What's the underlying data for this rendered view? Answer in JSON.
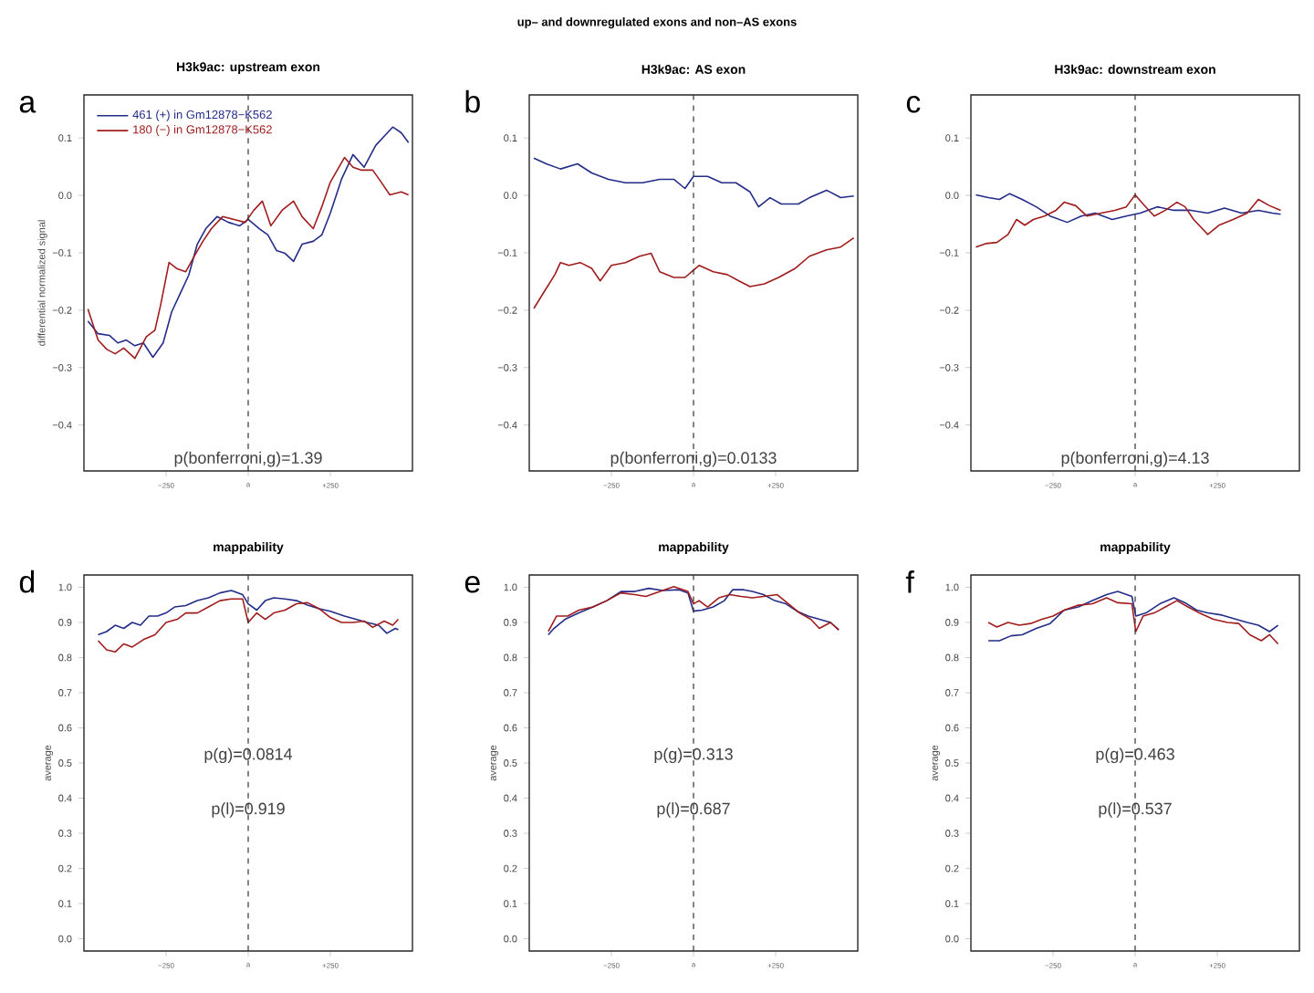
{
  "chart_data": [
    {
      "type": "line",
      "title": "H3k9ac: upstream exon",
      "ylabel": "differential normalized signal",
      "legend": "top left",
      "annotations": [
        "up– and downregulated exons and non–AS exons",
        "a",
        "p(bonferroni,g)=1.39"
      ],
      "xlim": [
        -500,
        500
      ],
      "xticks": [
        {
          "value": -250,
          "label": "−250"
        },
        {
          "value": 0,
          "label": "a"
        },
        {
          "value": 250,
          "label": "+250"
        }
      ],
      "ylim": [
        -0.48,
        0.175
      ],
      "yticks": [
        {
          "value": -0.4,
          "label": "−0.4"
        },
        {
          "value": -0.3,
          "label": "−0.3"
        },
        {
          "value": -0.2,
          "label": "−0.2"
        },
        {
          "value": -0.1,
          "label": "−0.1"
        },
        {
          "value": 0,
          "label": "0.0"
        },
        {
          "value": 0.1,
          "label": "0.1"
        }
      ],
      "ref_lines": [
        {
          "axis": "x",
          "value": 0,
          "line_style": "dashed",
          "color": "#333333"
        }
      ],
      "series": [
        {
          "name": "461 (+) in Gm12878−K562",
          "color": "#232c88",
          "x": [
            -488,
            -457,
            -422,
            -397,
            -371,
            -345,
            -319,
            -290,
            -259,
            -233,
            -207,
            -181,
            -155,
            -129,
            -95,
            -60,
            -26,
            0,
            34,
            60,
            86,
            112,
            138,
            164,
            198,
            224,
            250,
            284,
            319,
            353,
            388,
            414,
            440,
            466,
            488
          ],
          "values": [
            -0.219,
            -0.241,
            -0.244,
            -0.257,
            -0.252,
            -0.262,
            -0.257,
            -0.282,
            -0.257,
            -0.203,
            -0.171,
            -0.139,
            -0.085,
            -0.058,
            -0.037,
            -0.047,
            -0.053,
            -0.042,
            -0.058,
            -0.069,
            -0.096,
            -0.101,
            -0.115,
            -0.085,
            -0.08,
            -0.069,
            -0.031,
            0.028,
            0.071,
            0.049,
            0.087,
            0.103,
            0.119,
            0.109,
            0.092
          ]
        },
        {
          "name": "180 (−) in Gm12878−K562",
          "color": "#a01c1c",
          "x": [
            -488,
            -457,
            -431,
            -405,
            -379,
            -345,
            -310,
            -284,
            -267,
            -241,
            -216,
            -190,
            -164,
            -138,
            -112,
            -78,
            -43,
            -9,
            17,
            43,
            69,
            103,
            138,
            164,
            198,
            224,
            250,
            293,
            319,
            345,
            379,
            405,
            431,
            466,
            488
          ],
          "values": [
            -0.198,
            -0.252,
            -0.268,
            -0.276,
            -0.266,
            -0.284,
            -0.246,
            -0.235,
            -0.192,
            -0.117,
            -0.128,
            -0.133,
            -0.106,
            -0.08,
            -0.058,
            -0.037,
            -0.042,
            -0.047,
            -0.026,
            -0.01,
            -0.053,
            -0.026,
            -0.01,
            -0.037,
            -0.058,
            -0.02,
            0.023,
            0.066,
            0.049,
            0.044,
            0.044,
            0.023,
            0.001,
            0.006,
            0.001
          ]
        }
      ]
    },
    {
      "type": "line",
      "title": "H3k9ac: AS exon",
      "annotations": [
        "b",
        "p(bonferroni,g)=0.0133"
      ],
      "xlim": [
        -500,
        500
      ],
      "xticks": [
        {
          "value": -250,
          "label": "−250"
        },
        {
          "value": 0,
          "label": "a"
        },
        {
          "value": 250,
          "label": "+250"
        }
      ],
      "ylim": [
        -0.48,
        0.175
      ],
      "yticks": [
        {
          "value": -0.4,
          "label": "−0.4"
        },
        {
          "value": -0.3,
          "label": "−0.3"
        },
        {
          "value": -0.2,
          "label": "−0.2"
        },
        {
          "value": -0.1,
          "label": "−0.1"
        },
        {
          "value": 0,
          "label": "0.0"
        },
        {
          "value": 0.1,
          "label": "0.1"
        }
      ],
      "ref_lines": [
        {
          "axis": "x",
          "value": 0,
          "line_style": "dashed",
          "color": "#333333"
        }
      ],
      "series": [
        {
          "color": "#232c88",
          "x": [
            -486,
            -448,
            -405,
            -353,
            -310,
            -259,
            -207,
            -155,
            -103,
            -60,
            -26,
            0,
            43,
            86,
            129,
            172,
            198,
            233,
            267,
            319,
            353,
            405,
            448,
            488
          ],
          "values": [
            0.065,
            0.055,
            0.046,
            0.055,
            0.039,
            0.028,
            0.022,
            0.022,
            0.028,
            0.028,
            0.012,
            0.033,
            0.033,
            0.022,
            0.022,
            0.006,
            -0.02,
            -0.004,
            -0.015,
            -0.015,
            -0.004,
            0.009,
            -0.004,
            -0.001
          ]
        },
        {
          "color": "#a01c1c",
          "x": [
            -486,
            -457,
            -422,
            -405,
            -379,
            -345,
            -310,
            -284,
            -250,
            -207,
            -164,
            -129,
            -103,
            -60,
            -26,
            17,
            60,
            103,
            138,
            172,
            216,
            259,
            310,
            353,
            405,
            448,
            488
          ],
          "values": [
            -0.197,
            -0.17,
            -0.138,
            -0.117,
            -0.122,
            -0.117,
            -0.127,
            -0.149,
            -0.122,
            -0.117,
            -0.106,
            -0.101,
            -0.133,
            -0.143,
            -0.143,
            -0.122,
            -0.133,
            -0.138,
            -0.149,
            -0.159,
            -0.154,
            -0.143,
            -0.127,
            -0.106,
            -0.095,
            -0.09,
            -0.074
          ]
        }
      ]
    },
    {
      "type": "line",
      "title": "H3k9ac: downstream exon",
      "annotations": [
        "c",
        "p(bonferroni,g)=4.13"
      ],
      "xlim": [
        -500,
        500
      ],
      "xticks": [
        {
          "value": -250,
          "label": "−250"
        },
        {
          "value": 0,
          "label": "a"
        },
        {
          "value": 250,
          "label": "+250"
        }
      ],
      "ylim": [
        -0.48,
        0.175
      ],
      "yticks": [
        {
          "value": -0.4,
          "label": "−0.4"
        },
        {
          "value": -0.3,
          "label": "−0.3"
        },
        {
          "value": -0.2,
          "label": "−0.2"
        },
        {
          "value": -0.1,
          "label": "−0.1"
        },
        {
          "value": 0,
          "label": "0.0"
        },
        {
          "value": 0.1,
          "label": "0.1"
        }
      ],
      "ref_lines": [
        {
          "axis": "x",
          "value": 0,
          "line_style": "dashed",
          "color": "#333333"
        }
      ],
      "series": [
        {
          "color": "#232c88",
          "x": [
            -485,
            -447,
            -413,
            -382,
            -344,
            -301,
            -259,
            -207,
            -164,
            -122,
            -70,
            -27,
            15,
            67,
            118,
            170,
            221,
            272,
            324,
            375,
            418,
            443
          ],
          "values": [
            0.001,
            -0.004,
            -0.007,
            0.003,
            -0.007,
            -0.02,
            -0.036,
            -0.047,
            -0.036,
            -0.031,
            -0.042,
            -0.036,
            -0.031,
            -0.02,
            -0.026,
            -0.026,
            -0.031,
            -0.022,
            -0.031,
            -0.026,
            -0.031,
            -0.033
          ]
        },
        {
          "color": "#a01c1c",
          "x": [
            -485,
            -455,
            -421,
            -387,
            -361,
            -336,
            -310,
            -276,
            -241,
            -216,
            -181,
            -147,
            -104,
            -62,
            -27,
            0,
            24,
            58,
            92,
            127,
            152,
            178,
            221,
            255,
            298,
            341,
            375,
            409,
            443
          ],
          "values": [
            -0.09,
            -0.084,
            -0.082,
            -0.068,
            -0.042,
            -0.052,
            -0.042,
            -0.036,
            -0.026,
            -0.012,
            -0.018,
            -0.036,
            -0.031,
            -0.026,
            -0.02,
            0.001,
            -0.015,
            -0.036,
            -0.026,
            -0.012,
            -0.02,
            -0.042,
            -0.068,
            -0.052,
            -0.042,
            -0.031,
            -0.007,
            -0.018,
            -0.026
          ]
        }
      ]
    },
    {
      "type": "line",
      "title": "mappability",
      "ylabel": "average",
      "annotations": [
        "d",
        "p(g)=0.0814",
        "p(l)=0.919"
      ],
      "xlim": [
        -500,
        500
      ],
      "xticks": [
        {
          "value": -250,
          "label": "−250"
        },
        {
          "value": 0,
          "label": "a"
        },
        {
          "value": 250,
          "label": "+250"
        }
      ],
      "ylim": [
        -0.035,
        1.035
      ],
      "yticks": [
        {
          "value": 0,
          "label": "0.0"
        },
        {
          "value": 0.1,
          "label": "0.1"
        },
        {
          "value": 0.2,
          "label": "0.2"
        },
        {
          "value": 0.3,
          "label": "0.3"
        },
        {
          "value": 0.4,
          "label": "0.4"
        },
        {
          "value": 0.5,
          "label": "0.5"
        },
        {
          "value": 0.6,
          "label": "0.6"
        },
        {
          "value": 0.7,
          "label": "0.7"
        },
        {
          "value": 0.8,
          "label": "0.8"
        },
        {
          "value": 0.9,
          "label": "0.9"
        },
        {
          "value": 1,
          "label": "1.0"
        }
      ],
      "ref_lines": [
        {
          "axis": "x",
          "value": 0,
          "line_style": "dashed",
          "color": "#333333"
        }
      ],
      "series": [
        {
          "color": "#232c88",
          "x": [
            -457,
            -431,
            -405,
            -379,
            -353,
            -328,
            -302,
            -276,
            -250,
            -224,
            -190,
            -155,
            -121,
            -86,
            -52,
            -17,
            0,
            26,
            52,
            78,
            112,
            147,
            181,
            216,
            250,
            293,
            328,
            362,
            397,
            422,
            448,
            457
          ],
          "values": [
            0.865,
            0.874,
            0.892,
            0.883,
            0.9,
            0.892,
            0.918,
            0.918,
            0.927,
            0.944,
            0.948,
            0.962,
            0.97,
            0.984,
            0.991,
            0.979,
            0.953,
            0.935,
            0.962,
            0.97,
            0.967,
            0.962,
            0.949,
            0.939,
            0.932,
            0.918,
            0.909,
            0.9,
            0.892,
            0.869,
            0.883,
            0.879
          ]
        },
        {
          "color": "#a01c1c",
          "x": [
            -457,
            -431,
            -405,
            -379,
            -353,
            -319,
            -284,
            -250,
            -216,
            -190,
            -155,
            -121,
            -86,
            -52,
            -17,
            0,
            26,
            52,
            78,
            112,
            147,
            181,
            216,
            250,
            284,
            319,
            353,
            379,
            414,
            440,
            457
          ],
          "values": [
            0.848,
            0.822,
            0.816,
            0.839,
            0.83,
            0.851,
            0.865,
            0.9,
            0.909,
            0.927,
            0.927,
            0.944,
            0.962,
            0.967,
            0.967,
            0.9,
            0.927,
            0.909,
            0.927,
            0.935,
            0.953,
            0.956,
            0.939,
            0.914,
            0.9,
            0.9,
            0.904,
            0.886,
            0.904,
            0.892,
            0.909
          ]
        }
      ]
    },
    {
      "type": "line",
      "title": "mappability",
      "ylabel": "average",
      "annotations": [
        "e",
        "p(g)=0.313",
        "p(l)=0.687"
      ],
      "xlim": [
        -500,
        500
      ],
      "xticks": [
        {
          "value": -250,
          "label": "−250"
        },
        {
          "value": 0,
          "label": "a"
        },
        {
          "value": 250,
          "label": "+250"
        }
      ],
      "ylim": [
        -0.035,
        1.035
      ],
      "yticks": [
        {
          "value": 0,
          "label": "0.0"
        },
        {
          "value": 0.1,
          "label": "0.1"
        },
        {
          "value": 0.2,
          "label": "0.2"
        },
        {
          "value": 0.3,
          "label": "0.3"
        },
        {
          "value": 0.4,
          "label": "0.4"
        },
        {
          "value": 0.5,
          "label": "0.5"
        },
        {
          "value": 0.6,
          "label": "0.6"
        },
        {
          "value": 0.7,
          "label": "0.7"
        },
        {
          "value": 0.8,
          "label": "0.8"
        },
        {
          "value": 0.9,
          "label": "0.9"
        },
        {
          "value": 1,
          "label": "1.0"
        }
      ],
      "ref_lines": [
        {
          "axis": "x",
          "value": 0,
          "line_style": "dashed",
          "color": "#333333"
        }
      ],
      "series": [
        {
          "color": "#232c88",
          "x": [
            -442,
            -425,
            -391,
            -349,
            -306,
            -264,
            -221,
            -179,
            -136,
            -94,
            -43,
            -17,
            0,
            26,
            60,
            94,
            119,
            153,
            179,
            213,
            247,
            281,
            315,
            349,
            383,
            417,
            442
          ],
          "values": [
            0.865,
            0.883,
            0.909,
            0.927,
            0.944,
            0.962,
            0.988,
            0.988,
            0.997,
            0.991,
            0.993,
            0.984,
            0.932,
            0.935,
            0.944,
            0.962,
            0.993,
            0.993,
            0.988,
            0.979,
            0.962,
            0.953,
            0.932,
            0.918,
            0.909,
            0.9,
            0.879
          ]
        },
        {
          "color": "#a01c1c",
          "x": [
            -442,
            -417,
            -383,
            -349,
            -306,
            -264,
            -221,
            -179,
            -145,
            -102,
            -60,
            -17,
            0,
            17,
            43,
            77,
            111,
            145,
            179,
            213,
            255,
            289,
            323,
            357,
            383,
            417,
            442
          ],
          "values": [
            0.874,
            0.918,
            0.918,
            0.935,
            0.944,
            0.962,
            0.984,
            0.979,
            0.974,
            0.988,
            1.002,
            0.988,
            0.953,
            0.962,
            0.944,
            0.97,
            0.979,
            0.974,
            0.97,
            0.974,
            0.979,
            0.953,
            0.927,
            0.909,
            0.883,
            0.9,
            0.879
          ]
        }
      ]
    },
    {
      "type": "line",
      "title": "mappability",
      "ylabel": "average",
      "annotations": [
        "f",
        "p(g)=0.463",
        "p(l)=0.537"
      ],
      "xlim": [
        -500,
        500
      ],
      "xticks": [
        {
          "value": -250,
          "label": "−250"
        },
        {
          "value": 0,
          "label": "a"
        },
        {
          "value": 250,
          "label": "+250"
        }
      ],
      "ylim": [
        -0.035,
        1.035
      ],
      "yticks": [
        {
          "value": 0,
          "label": "0.0"
        },
        {
          "value": 0.1,
          "label": "0.1"
        },
        {
          "value": 0.2,
          "label": "0.2"
        },
        {
          "value": 0.3,
          "label": "0.3"
        },
        {
          "value": 0.4,
          "label": "0.4"
        },
        {
          "value": 0.5,
          "label": "0.5"
        },
        {
          "value": 0.6,
          "label": "0.6"
        },
        {
          "value": 0.7,
          "label": "0.7"
        },
        {
          "value": 0.8,
          "label": "0.8"
        },
        {
          "value": 0.9,
          "label": "0.9"
        },
        {
          "value": 1,
          "label": "1.0"
        }
      ],
      "ref_lines": [
        {
          "axis": "x",
          "value": 0,
          "line_style": "dashed",
          "color": "#333333"
        }
      ],
      "series": [
        {
          "color": "#232c88",
          "x": [
            -447,
            -413,
            -378,
            -344,
            -301,
            -259,
            -216,
            -173,
            -130,
            -87,
            -53,
            -10,
            2,
            33,
            75,
            118,
            152,
            187,
            221,
            264,
            307,
            341,
            375,
            409,
            435
          ],
          "values": [
            0.848,
            0.848,
            0.862,
            0.865,
            0.883,
            0.897,
            0.935,
            0.944,
            0.962,
            0.979,
            0.988,
            0.974,
            0.918,
            0.927,
            0.953,
            0.97,
            0.956,
            0.935,
            0.927,
            0.921,
            0.909,
            0.9,
            0.892,
            0.874,
            0.892
          ]
        },
        {
          "color": "#a01c1c",
          "x": [
            -447,
            -421,
            -387,
            -353,
            -318,
            -284,
            -250,
            -216,
            -173,
            -130,
            -87,
            -53,
            -10,
            2,
            24,
            58,
            92,
            127,
            161,
            195,
            238,
            281,
            315,
            349,
            384,
            409,
            435
          ],
          "values": [
            0.9,
            0.887,
            0.9,
            0.892,
            0.897,
            0.909,
            0.918,
            0.935,
            0.949,
            0.953,
            0.97,
            0.956,
            0.953,
            0.874,
            0.918,
            0.927,
            0.944,
            0.962,
            0.944,
            0.927,
            0.909,
            0.9,
            0.897,
            0.865,
            0.848,
            0.865,
            0.839
          ]
        }
      ]
    }
  ]
}
